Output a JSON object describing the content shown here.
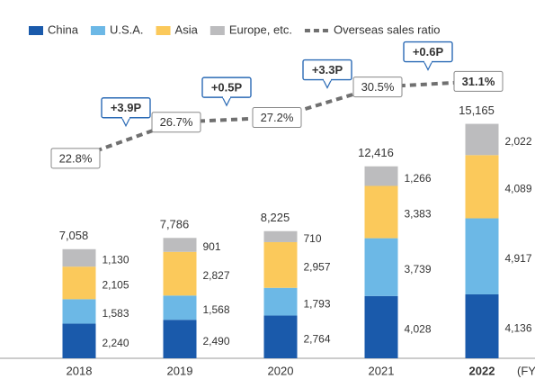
{
  "chart_data": {
    "type": "stacked-bar-line",
    "categories": [
      "2018",
      "2019",
      "2020",
      "2021",
      "2022"
    ],
    "series": [
      {
        "name": "China",
        "color": "#1a5aab",
        "values": [
          2240,
          2490,
          2764,
          4028,
          4136
        ],
        "value_labels": [
          "2,240",
          "2,490",
          "2,764",
          "4,028",
          "4,136"
        ]
      },
      {
        "name": "U.S.A.",
        "color": "#6cb8e6",
        "values": [
          1583,
          1568,
          1793,
          3739,
          4917
        ],
        "value_labels": [
          "1,583",
          "1,568",
          "1,793",
          "3,739",
          "4,917"
        ]
      },
      {
        "name": "Asia",
        "color": "#fbc95b",
        "values": [
          2105,
          2827,
          2957,
          3383,
          4089
        ],
        "value_labels": [
          "2,105",
          "2,827",
          "2,957",
          "3,383",
          "4,089"
        ]
      },
      {
        "name": "Europe, etc.",
        "color": "#bcbcbe",
        "values": [
          1130,
          901,
          710,
          1266,
          2022
        ],
        "value_labels": [
          "1,130",
          "901",
          "710",
          "1,266",
          "2,022"
        ]
      },
      {
        "name": "Overseas sales ratio",
        "color": "#707070",
        "axis": "y2",
        "values": [
          22.8,
          26.7,
          27.2,
          30.5,
          31.1
        ],
        "value_labels": [
          "22.8%",
          "26.7%",
          "27.2%",
          "30.5%",
          "31.1%"
        ]
      }
    ],
    "totals": [
      7058,
      7786,
      8225,
      12416,
      15165
    ],
    "total_labels": [
      "7,058",
      "7,786",
      "8,225",
      "12,416",
      "15,165"
    ],
    "changes": [
      "+3.9P",
      "+0.5P",
      "+3.3P",
      "+0.6P"
    ],
    "xlabel": "(FY)",
    "ylim": [
      0,
      23000
    ],
    "y2lim": [
      1.2,
      39.6
    ]
  }
}
